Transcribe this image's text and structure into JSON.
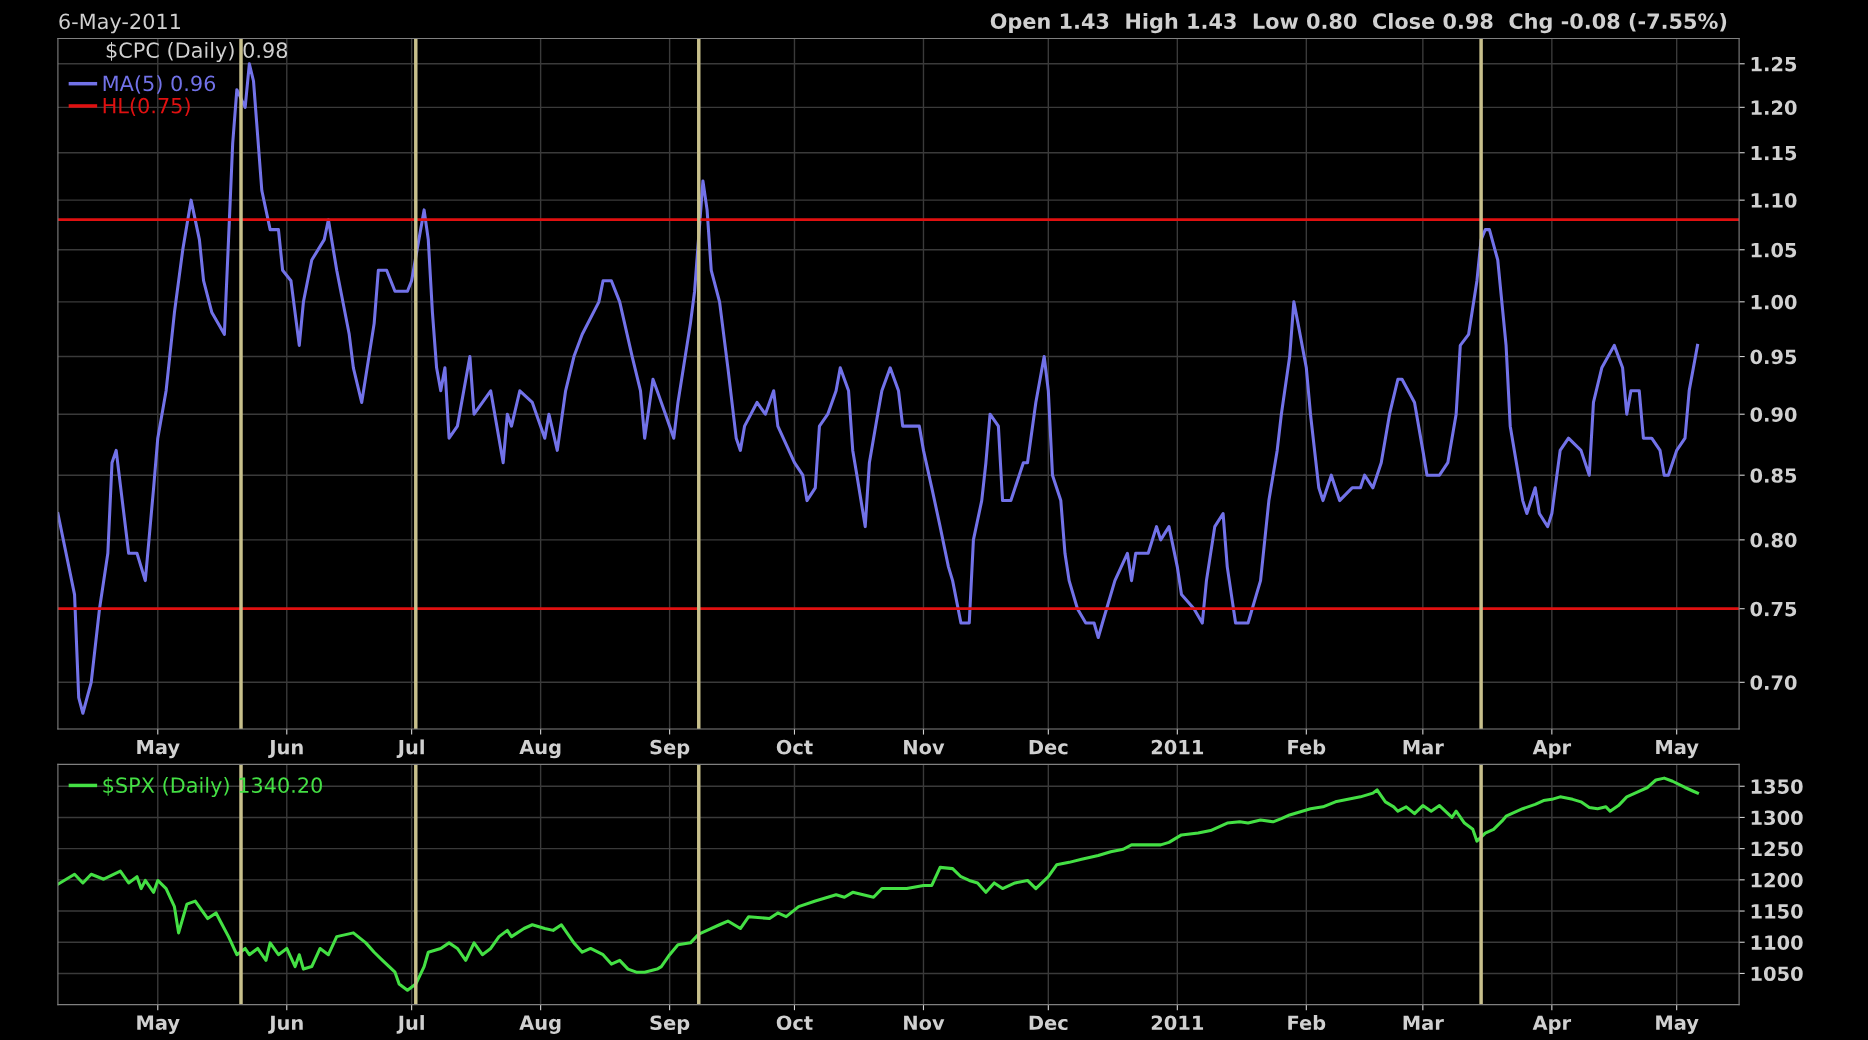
{
  "chart_data": [
    {
      "type": "line",
      "title": "$CPC (Daily) 0.98",
      "annotations": [
        "6-May-2011",
        "Open 1.43  High 1.43  Low 0.80  Close 0.98  Chg -0.08 (-7.55%)"
      ],
      "log": true,
      "grid": true,
      "legend": "top left",
      "line_style": "solid",
      "xlim": [
        "2010-04-07",
        "2011-05-16"
      ],
      "xticks": [
        {
          "value": "2010-05-01",
          "label": "May"
        },
        {
          "value": "2010-06-01",
          "label": "Jun"
        },
        {
          "value": "2010-07-01",
          "label": "Jul"
        },
        {
          "value": "2010-08-01",
          "label": "Aug"
        },
        {
          "value": "2010-09-01",
          "label": "Sep"
        },
        {
          "value": "2010-10-01",
          "label": "Oct"
        },
        {
          "value": "2010-11-01",
          "label": "Nov"
        },
        {
          "value": "2010-12-01",
          "label": "Dec"
        },
        {
          "value": "2011-01-01",
          "label": "2011"
        },
        {
          "value": "2011-02-01",
          "label": "Feb"
        },
        {
          "value": "2011-03-01",
          "label": "Mar"
        },
        {
          "value": "2011-04-01",
          "label": "Apr"
        },
        {
          "value": "2011-05-01",
          "label": "May"
        }
      ],
      "ylim": [
        0.67,
        1.28
      ],
      "yticks": [
        {
          "value": 0.7,
          "label": "0.70"
        },
        {
          "value": 0.75,
          "label": "0.75"
        },
        {
          "value": 0.8,
          "label": "0.80"
        },
        {
          "value": 0.85,
          "label": "0.85"
        },
        {
          "value": 0.9,
          "label": "0.90"
        },
        {
          "value": 0.95,
          "label": "0.95"
        },
        {
          "value": 1.0,
          "label": "1.00"
        },
        {
          "value": 1.05,
          "label": "1.05"
        },
        {
          "value": 1.1,
          "label": "1.10"
        },
        {
          "value": 1.15,
          "label": "1.15"
        },
        {
          "value": 1.2,
          "label": "1.20"
        },
        {
          "value": 1.25,
          "label": "1.25"
        }
      ],
      "ref_lines": [
        {
          "axis": "y",
          "value": 0.75,
          "label": "HL(0.75)",
          "color": "#e01010"
        },
        {
          "axis": "y",
          "value": 1.08,
          "color": "#e01010"
        },
        {
          "axis": "x",
          "value": "2010-05-21",
          "color": "#c8c08c"
        },
        {
          "axis": "x",
          "value": "2010-07-02",
          "color": "#c8c08c"
        },
        {
          "axis": "x",
          "value": "2010-09-08",
          "color": "#c8c08c"
        },
        {
          "axis": "x",
          "value": "2011-03-15",
          "color": "#c8c08c"
        }
      ],
      "series": [
        {
          "name": "MA(5) 0.96",
          "color": "#7272e8",
          "x": [
            "2010-04-07",
            "2010-04-11",
            "2010-04-12",
            "2010-04-13",
            "2010-04-15",
            "2010-04-17",
            "2010-04-19",
            "2010-04-20",
            "2010-04-21",
            "2010-04-24",
            "2010-04-26",
            "2010-04-28",
            "2010-04-30",
            "2010-05-01",
            "2010-05-03",
            "2010-05-05",
            "2010-05-07",
            "2010-05-09",
            "2010-05-11",
            "2010-05-12",
            "2010-05-14",
            "2010-05-17",
            "2010-05-18",
            "2010-05-19",
            "2010-05-20",
            "2010-05-22",
            "2010-05-23",
            "2010-05-24",
            "2010-05-26",
            "2010-05-28",
            "2010-05-30",
            "2010-05-31",
            "2010-06-02",
            "2010-06-04",
            "2010-06-05",
            "2010-06-07",
            "2010-06-10",
            "2010-06-11",
            "2010-06-13",
            "2010-06-16",
            "2010-06-17",
            "2010-06-19",
            "2010-06-22",
            "2010-06-23",
            "2010-06-25",
            "2010-06-27",
            "2010-06-30",
            "2010-07-01",
            "2010-07-04",
            "2010-07-05",
            "2010-07-06",
            "2010-07-07",
            "2010-07-08",
            "2010-07-09",
            "2010-07-10",
            "2010-07-12",
            "2010-07-15",
            "2010-07-16",
            "2010-07-20",
            "2010-07-23",
            "2010-07-24",
            "2010-07-25",
            "2010-07-27",
            "2010-07-30",
            "2010-08-02",
            "2010-08-03",
            "2010-08-05",
            "2010-08-07",
            "2010-08-09",
            "2010-08-11",
            "2010-08-15",
            "2010-08-16",
            "2010-08-18",
            "2010-08-20",
            "2010-08-23",
            "2010-08-25",
            "2010-08-26",
            "2010-08-28",
            "2010-08-29",
            "2010-08-31",
            "2010-09-02",
            "2010-09-03",
            "2010-09-06",
            "2010-09-07",
            "2010-09-09",
            "2010-09-10",
            "2010-09-11",
            "2010-09-13",
            "2010-09-15",
            "2010-09-17",
            "2010-09-18",
            "2010-09-19",
            "2010-09-22",
            "2010-09-24",
            "2010-09-26",
            "2010-09-27",
            "2010-10-01",
            "2010-10-03",
            "2010-10-04",
            "2010-10-06",
            "2010-10-07",
            "2010-10-09",
            "2010-10-11",
            "2010-10-12",
            "2010-10-14",
            "2010-10-15",
            "2010-10-16",
            "2010-10-18",
            "2010-10-19",
            "2010-10-21",
            "2010-10-22",
            "2010-10-24",
            "2010-10-26",
            "2010-10-27",
            "2010-10-31",
            "2010-11-01",
            "2010-11-03",
            "2010-11-05",
            "2010-11-07",
            "2010-11-08",
            "2010-11-10",
            "2010-11-12",
            "2010-11-13",
            "2010-11-15",
            "2010-11-16",
            "2010-11-17",
            "2010-11-19",
            "2010-11-20",
            "2010-11-22",
            "2010-11-25",
            "2010-11-26",
            "2010-11-28",
            "2010-11-30",
            "2010-12-01",
            "2010-12-02",
            "2010-12-04",
            "2010-12-05",
            "2010-12-06",
            "2010-12-08",
            "2010-12-10",
            "2010-12-12",
            "2010-12-13",
            "2010-12-14",
            "2010-12-17",
            "2010-12-20",
            "2010-12-21",
            "2010-12-22",
            "2010-12-25",
            "2010-12-27",
            "2010-12-28",
            "2010-12-30",
            "2011-01-01",
            "2011-01-02",
            "2011-01-05",
            "2011-01-07",
            "2011-01-08",
            "2011-01-10",
            "2011-01-12",
            "2011-01-13",
            "2011-01-15",
            "2011-01-18",
            "2011-01-20",
            "2011-01-21",
            "2011-01-23",
            "2011-01-25",
            "2011-01-26",
            "2011-01-28",
            "2011-01-29",
            "2011-01-30",
            "2011-02-01",
            "2011-02-02",
            "2011-02-04",
            "2011-02-05",
            "2011-02-07",
            "2011-02-09",
            "2011-02-12",
            "2011-02-14",
            "2011-02-15",
            "2011-02-17",
            "2011-02-19",
            "2011-02-21",
            "2011-02-23",
            "2011-02-24",
            "2011-02-27",
            "2011-03-01",
            "2011-03-02",
            "2011-03-04",
            "2011-03-05",
            "2011-03-07",
            "2011-03-09",
            "2011-03-10",
            "2011-03-12",
            "2011-03-14",
            "2011-03-15",
            "2011-03-16",
            "2011-03-17",
            "2011-03-19",
            "2011-03-21",
            "2011-03-22",
            "2011-03-25",
            "2011-03-26",
            "2011-03-28",
            "2011-03-29",
            "2011-03-31",
            "2011-04-01",
            "2011-04-03",
            "2011-04-05",
            "2011-04-08",
            "2011-04-10",
            "2011-04-11",
            "2011-04-13",
            "2011-04-16",
            "2011-04-18",
            "2011-04-19",
            "2011-04-20",
            "2011-04-22",
            "2011-04-23",
            "2011-04-25",
            "2011-04-27",
            "2011-04-28",
            "2011-04-29",
            "2011-05-01",
            "2011-05-03",
            "2011-05-04",
            "2011-05-06"
          ],
          "values": [
            0.82,
            0.76,
            0.69,
            0.68,
            0.7,
            0.75,
            0.79,
            0.86,
            0.87,
            0.79,
            0.79,
            0.77,
            0.84,
            0.88,
            0.92,
            0.99,
            1.05,
            1.1,
            1.06,
            1.02,
            0.99,
            0.97,
            1.06,
            1.16,
            1.22,
            1.2,
            1.25,
            1.23,
            1.11,
            1.07,
            1.07,
            1.03,
            1.02,
            0.96,
            1.0,
            1.04,
            1.06,
            1.08,
            1.03,
            0.97,
            0.94,
            0.91,
            0.98,
            1.03,
            1.03,
            1.01,
            1.01,
            1.02,
            1.09,
            1.06,
            0.99,
            0.94,
            0.92,
            0.94,
            0.88,
            0.89,
            0.95,
            0.9,
            0.92,
            0.86,
            0.9,
            0.89,
            0.92,
            0.91,
            0.88,
            0.9,
            0.87,
            0.92,
            0.95,
            0.97,
            1.0,
            1.02,
            1.02,
            1.0,
            0.95,
            0.92,
            0.88,
            0.93,
            0.92,
            0.9,
            0.88,
            0.91,
            0.98,
            1.01,
            1.12,
            1.09,
            1.03,
            1.0,
            0.94,
            0.88,
            0.87,
            0.89,
            0.91,
            0.9,
            0.92,
            0.89,
            0.86,
            0.85,
            0.83,
            0.84,
            0.89,
            0.9,
            0.92,
            0.94,
            0.92,
            0.87,
            0.85,
            0.81,
            0.86,
            0.9,
            0.92,
            0.94,
            0.92,
            0.89,
            0.89,
            0.87,
            0.84,
            0.81,
            0.78,
            0.77,
            0.74,
            0.74,
            0.8,
            0.83,
            0.86,
            0.9,
            0.89,
            0.83,
            0.83,
            0.86,
            0.86,
            0.91,
            0.95,
            0.92,
            0.85,
            0.83,
            0.79,
            0.77,
            0.75,
            0.74,
            0.74,
            0.73,
            0.74,
            0.77,
            0.79,
            0.77,
            0.79,
            0.79,
            0.81,
            0.8,
            0.81,
            0.78,
            0.76,
            0.75,
            0.74,
            0.77,
            0.81,
            0.82,
            0.78,
            0.74,
            0.74,
            0.76,
            0.77,
            0.83,
            0.87,
            0.9,
            0.95,
            1.0,
            0.98,
            0.94,
            0.9,
            0.84,
            0.83,
            0.85,
            0.83,
            0.84,
            0.84,
            0.85,
            0.84,
            0.86,
            0.9,
            0.93,
            0.93,
            0.91,
            0.87,
            0.85,
            0.85,
            0.85,
            0.86,
            0.9,
            0.96,
            0.97,
            1.02,
            1.06,
            1.07,
            1.07,
            1.04,
            0.96,
            0.89,
            0.83,
            0.82,
            0.84,
            0.82,
            0.81,
            0.82,
            0.87,
            0.88,
            0.87,
            0.85,
            0.91,
            0.94,
            0.96,
            0.94,
            0.9,
            0.92,
            0.92,
            0.88,
            0.88,
            0.87,
            0.85,
            0.85,
            0.87,
            0.88,
            0.92,
            0.96
          ]
        }
      ]
    },
    {
      "type": "line",
      "grid": true,
      "legend": "top left",
      "line_style": "solid",
      "xlim": [
        "2010-04-07",
        "2011-05-16"
      ],
      "xticks": [
        {
          "value": "2010-05-01",
          "label": "May"
        },
        {
          "value": "2010-06-01",
          "label": "Jun"
        },
        {
          "value": "2010-07-01",
          "label": "Jul"
        },
        {
          "value": "2010-08-01",
          "label": "Aug"
        },
        {
          "value": "2010-09-01",
          "label": "Sep"
        },
        {
          "value": "2010-10-01",
          "label": "Oct"
        },
        {
          "value": "2010-11-01",
          "label": "Nov"
        },
        {
          "value": "2010-12-01",
          "label": "Dec"
        },
        {
          "value": "2011-01-01",
          "label": "2011"
        },
        {
          "value": "2011-02-01",
          "label": "Feb"
        },
        {
          "value": "2011-03-01",
          "label": "Mar"
        },
        {
          "value": "2011-04-01",
          "label": "Apr"
        },
        {
          "value": "2011-05-01",
          "label": "May"
        }
      ],
      "ylim": [
        1000,
        1385
      ],
      "yticks": [
        1050,
        1100,
        1150,
        1200,
        1250,
        1300,
        1350
      ],
      "ref_lines": [
        {
          "axis": "x",
          "value": "2010-05-21",
          "color": "#c8c08c"
        },
        {
          "axis": "x",
          "value": "2010-07-02",
          "color": "#c8c08c"
        },
        {
          "axis": "x",
          "value": "2010-09-08",
          "color": "#c8c08c"
        },
        {
          "axis": "x",
          "value": "2011-03-15",
          "color": "#c8c08c"
        }
      ],
      "series": [
        {
          "name": "$SPX (Daily) 1340.20",
          "color": "#44e044",
          "x": [
            "2010-04-07",
            "2010-04-11",
            "2010-04-13",
            "2010-04-15",
            "2010-04-18",
            "2010-04-22",
            "2010-04-24",
            "2010-04-26",
            "2010-04-27",
            "2010-04-28",
            "2010-04-30",
            "2010-05-01",
            "2010-05-03",
            "2010-05-05",
            "2010-05-06",
            "2010-05-08",
            "2010-05-10",
            "2010-05-13",
            "2010-05-15",
            "2010-05-16",
            "2010-05-18",
            "2010-05-20",
            "2010-05-22",
            "2010-05-23",
            "2010-05-25",
            "2010-05-27",
            "2010-05-28",
            "2010-05-30",
            "2010-06-01",
            "2010-06-03",
            "2010-06-04",
            "2010-06-05",
            "2010-06-07",
            "2010-06-09",
            "2010-06-11",
            "2010-06-13",
            "2010-06-17",
            "2010-06-20",
            "2010-06-22",
            "2010-06-24",
            "2010-06-27",
            "2010-06-28",
            "2010-06-30",
            "2010-07-02",
            "2010-07-04",
            "2010-07-05",
            "2010-07-08",
            "2010-07-10",
            "2010-07-12",
            "2010-07-14",
            "2010-07-16",
            "2010-07-18",
            "2010-07-20",
            "2010-07-22",
            "2010-07-24",
            "2010-07-25",
            "2010-07-28",
            "2010-07-30",
            "2010-08-02",
            "2010-08-04",
            "2010-08-06",
            "2010-08-09",
            "2010-08-11",
            "2010-08-13",
            "2010-08-16",
            "2010-08-18",
            "2010-08-20",
            "2010-08-22",
            "2010-08-24",
            "2010-08-26",
            "2010-08-29",
            "2010-08-30",
            "2010-09-01",
            "2010-09-03",
            "2010-09-06",
            "2010-09-08",
            "2010-09-10",
            "2010-09-13",
            "2010-09-15",
            "2010-09-18",
            "2010-09-20",
            "2010-09-25",
            "2010-09-27",
            "2010-09-29",
            "2010-10-02",
            "2010-10-06",
            "2010-10-11",
            "2010-10-13",
            "2010-10-15",
            "2010-10-20",
            "2010-10-22",
            "2010-10-28",
            "2010-11-01",
            "2010-11-03",
            "2010-11-05",
            "2010-11-08",
            "2010-11-10",
            "2010-11-12",
            "2010-11-14",
            "2010-11-16",
            "2010-11-18",
            "2010-11-20",
            "2010-11-23",
            "2010-11-26",
            "2010-11-28",
            "2010-12-01",
            "2010-12-03",
            "2010-12-06",
            "2010-12-09",
            "2010-12-13",
            "2010-12-16",
            "2010-12-19",
            "2010-12-21",
            "2010-12-28",
            "2010-12-30",
            "2011-01-02",
            "2011-01-06",
            "2011-01-09",
            "2011-01-11",
            "2011-01-13",
            "2011-01-16",
            "2011-01-18",
            "2011-01-21",
            "2011-01-24",
            "2011-01-26",
            "2011-01-28",
            "2011-01-30",
            "2011-02-02",
            "2011-02-05",
            "2011-02-08",
            "2011-02-11",
            "2011-02-14",
            "2011-02-17",
            "2011-02-18",
            "2011-02-20",
            "2011-02-22",
            "2011-02-23",
            "2011-02-25",
            "2011-02-27",
            "2011-03-01",
            "2011-03-03",
            "2011-03-05",
            "2011-03-08",
            "2011-03-09",
            "2011-03-11",
            "2011-03-13",
            "2011-03-14",
            "2011-03-16",
            "2011-03-18",
            "2011-03-20",
            "2011-03-21",
            "2011-03-25",
            "2011-03-28",
            "2011-03-30",
            "2011-04-01",
            "2011-04-03",
            "2011-04-06",
            "2011-04-08",
            "2011-04-10",
            "2011-04-12",
            "2011-04-14",
            "2011-04-15",
            "2011-04-17",
            "2011-04-19",
            "2011-04-21",
            "2011-04-24",
            "2011-04-26",
            "2011-04-28",
            "2011-04-30",
            "2011-05-03",
            "2011-05-05",
            "2011-05-06"
          ],
          "values": [
            1193,
            1209,
            1195,
            1209,
            1201,
            1214,
            1195,
            1205,
            1186,
            1199,
            1180,
            1199,
            1186,
            1157,
            1115,
            1161,
            1166,
            1138,
            1147,
            1134,
            1109,
            1080,
            1090,
            1080,
            1090,
            1071,
            1099,
            1080,
            1090,
            1061,
            1080,
            1057,
            1061,
            1090,
            1080,
            1109,
            1115,
            1099,
            1084,
            1071,
            1052,
            1033,
            1023,
            1033,
            1061,
            1084,
            1090,
            1099,
            1090,
            1071,
            1099,
            1080,
            1090,
            1109,
            1119,
            1109,
            1122,
            1128,
            1122,
            1119,
            1128,
            1099,
            1084,
            1090,
            1080,
            1065,
            1071,
            1057,
            1052,
            1052,
            1057,
            1061,
            1080,
            1096,
            1099,
            1113,
            1119,
            1128,
            1134,
            1122,
            1141,
            1138,
            1147,
            1141,
            1157,
            1166,
            1176,
            1172,
            1180,
            1172,
            1186,
            1186,
            1191,
            1191,
            1220,
            1218,
            1205,
            1199,
            1195,
            1180,
            1195,
            1186,
            1195,
            1199,
            1186,
            1205,
            1224,
            1228,
            1233,
            1239,
            1245,
            1249,
            1256,
            1256,
            1260,
            1272,
            1275,
            1279,
            1285,
            1291,
            1293,
            1291,
            1296,
            1293,
            1298,
            1304,
            1308,
            1314,
            1317,
            1325,
            1329,
            1333,
            1339,
            1344,
            1325,
            1317,
            1310,
            1317,
            1306,
            1319,
            1310,
            1319,
            1300,
            1310,
            1291,
            1281,
            1262,
            1275,
            1281,
            1294,
            1302,
            1314,
            1321,
            1327,
            1329,
            1333,
            1329,
            1325,
            1316,
            1314,
            1317,
            1310,
            1319,
            1333,
            1339,
            1348,
            1360,
            1363,
            1358,
            1348,
            1342,
            1339
          ]
        }
      ]
    }
  ]
}
